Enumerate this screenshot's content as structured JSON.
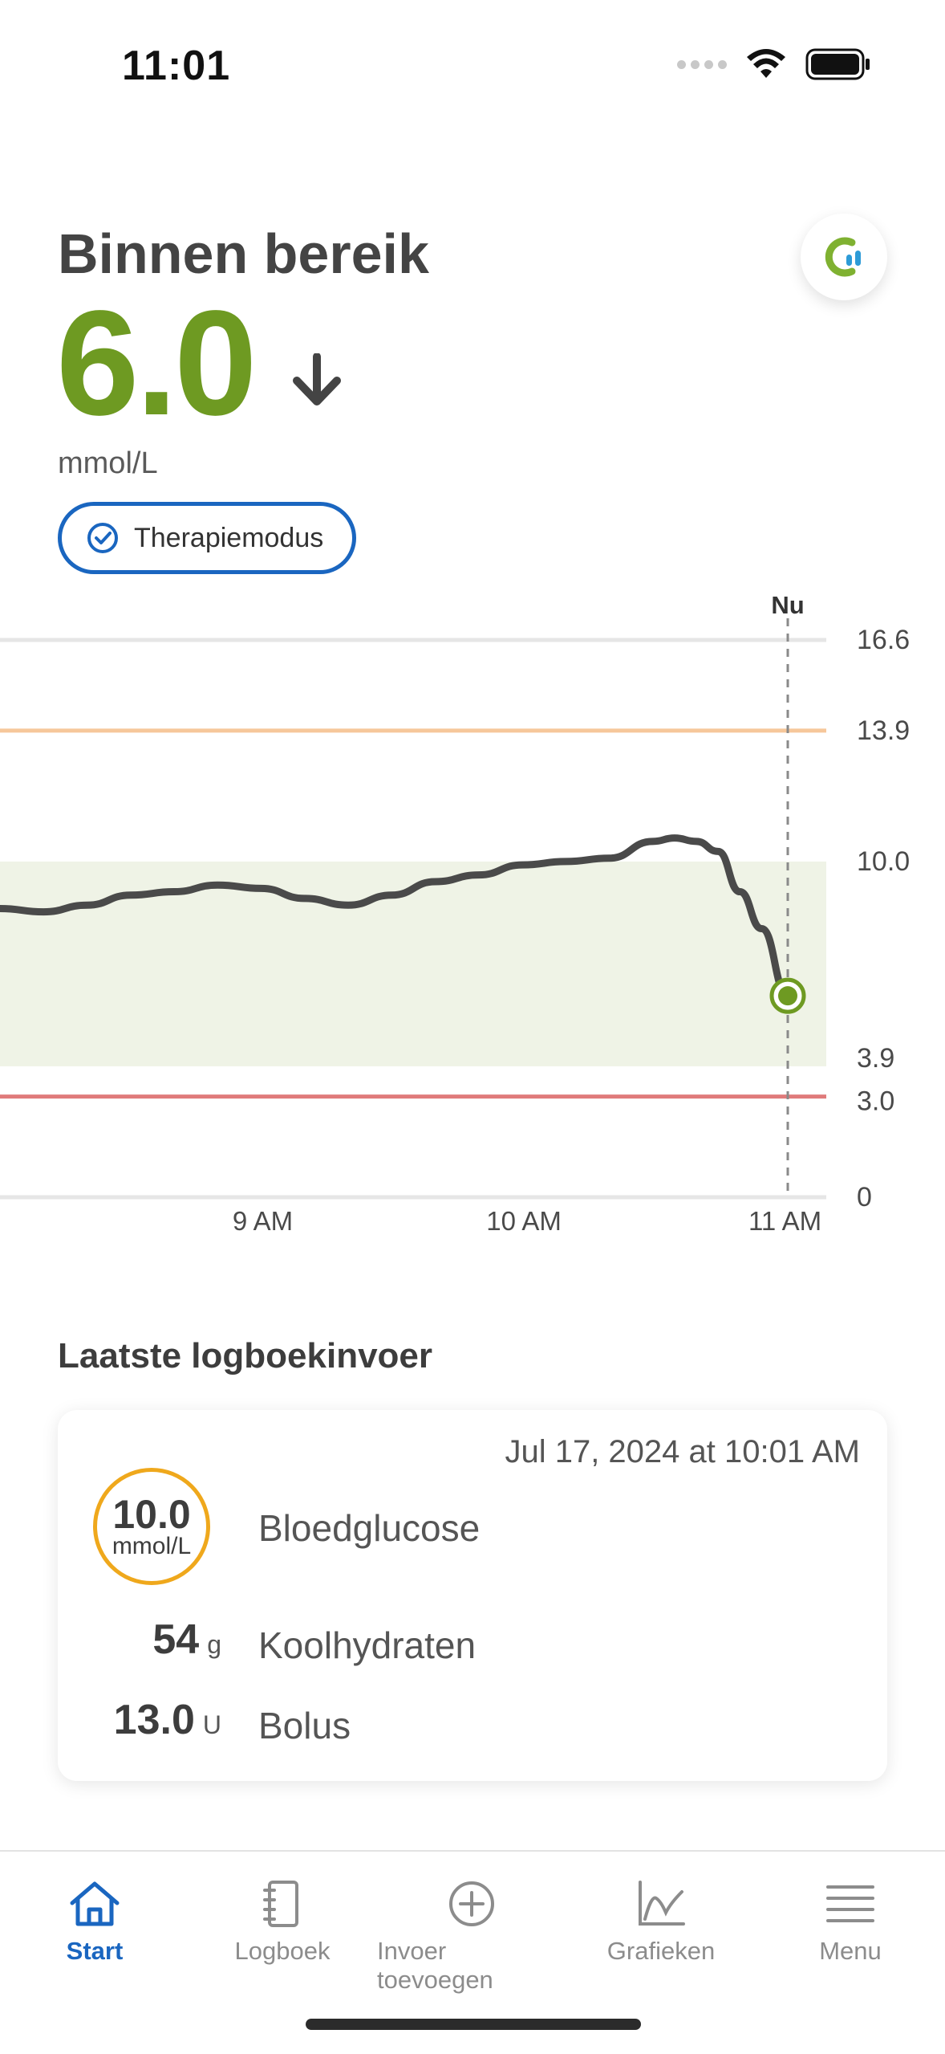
{
  "status_bar": {
    "time": "11:01"
  },
  "header": {
    "title": "Binnen bereik",
    "glucose_value": "6.0",
    "unit": "mmol/L",
    "trend": "arrow-down",
    "therapy_label": "Therapiemodus"
  },
  "chart_data": {
    "type": "line",
    "now_label": "Nu",
    "y_ticks": [
      "16.6",
      "13.9",
      "10.0",
      "3.9",
      "3.0",
      "0"
    ],
    "x_ticks": [
      "9 AM",
      "10 AM",
      "11 AM"
    ],
    "target_range": [
      3.9,
      10.0
    ],
    "high_threshold": 13.9,
    "low_threshold": 3.0,
    "ylim": [
      0,
      16.6
    ],
    "xlim": [
      "8:00",
      "11:05"
    ],
    "series": [
      {
        "x": [
          "8:00",
          "8:10",
          "8:20",
          "8:30",
          "8:40",
          "8:50",
          "9:00",
          "9:10",
          "9:20",
          "9:30",
          "9:40",
          "9:50",
          "10:00",
          "10:10",
          "10:20",
          "10:30",
          "10:35",
          "10:40",
          "10:45",
          "10:50",
          "10:55",
          "11:01"
        ],
        "values": [
          8.6,
          8.5,
          8.7,
          9.0,
          9.1,
          9.3,
          9.2,
          8.9,
          8.7,
          9.0,
          9.4,
          9.6,
          9.9,
          10.0,
          10.1,
          10.6,
          10.7,
          10.6,
          10.3,
          9.1,
          8.0,
          6.0
        ]
      }
    ],
    "current": {
      "x": "11:01",
      "value": 6.0
    },
    "colors": {
      "line": "#4a4a4a",
      "range_fill": "#eff3e6",
      "high": "#f6c79a",
      "low": "#e07b7b",
      "point": "#6e9a22",
      "grid": "#e6e6e6"
    }
  },
  "logbook": {
    "section_title": "Laatste logboekinvoer",
    "date": "Jul 17, 2024 at 10:01 AM",
    "bg_value": "10.0",
    "bg_unit": "mmol/L",
    "bg_label": "Bloedglucose",
    "carbs_value": "54",
    "carbs_unit": "g",
    "carbs_label": "Koolhydraten",
    "bolus_value": "13.0",
    "bolus_unit": "U",
    "bolus_label": "Bolus"
  },
  "tabs": [
    {
      "label": "Start",
      "icon": "home-icon",
      "active": true
    },
    {
      "label": "Logboek",
      "icon": "logbook-icon",
      "active": false
    },
    {
      "label": "Invoer toevoegen",
      "icon": "add-circle-icon",
      "active": false
    },
    {
      "label": "Grafieken",
      "icon": "chart-icon",
      "active": false
    },
    {
      "label": "Menu",
      "icon": "menu-icon",
      "active": false
    }
  ],
  "colors": {
    "accent": "#1a66c0",
    "in_range": "#6e9a22",
    "bg_ring": "#efa81c"
  }
}
